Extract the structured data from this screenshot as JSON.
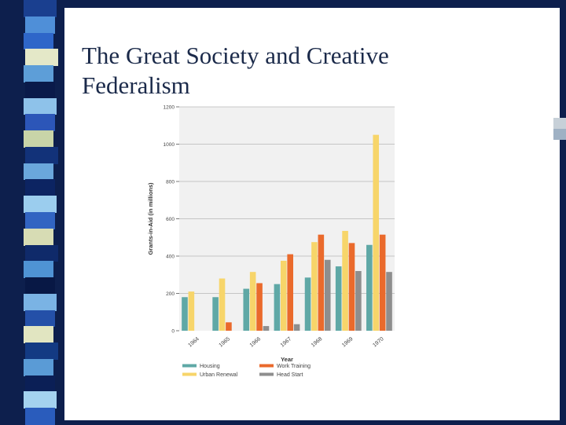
{
  "slide": {
    "title_line1": "The Great Society and Creative",
    "title_line2": "Federalism"
  },
  "colors": {
    "background": "#0d1f4d",
    "content": "#ffffff",
    "stripes": [
      "#1a3f8f",
      "#4f8fd8",
      "#2e66c9",
      "#e4e8c8",
      "#5d9ed8",
      "#0a1a4a",
      "#8ec2ea",
      "#2c56b8",
      "#c8d4a8",
      "#123279",
      "#6aa7dc",
      "#0c2462",
      "#9bcdee",
      "#3164c2",
      "#d7dcb4",
      "#0f2a6a",
      "#4f93d4",
      "#081845",
      "#7ab3e4",
      "#2450a8",
      "#e1e5c1",
      "#133a83",
      "#5a9bd6",
      "#0b1f56",
      "#a4d2ef",
      "#2a5cbc"
    ]
  },
  "chart_data": {
    "type": "bar",
    "ylabel": "Grants-in-Aid (in millions)",
    "xlabel": "Year",
    "ylim": [
      0,
      1200
    ],
    "yticks": [
      0,
      200,
      400,
      600,
      800,
      1000,
      1200
    ],
    "grid": true,
    "legend_position": "bottom",
    "categories": [
      "1964",
      "1965",
      "1966",
      "1967",
      "1968",
      "1969",
      "1970"
    ],
    "series": [
      {
        "name": "Housing",
        "color": "#5fa8a6",
        "values": [
          180,
          180,
          225,
          250,
          285,
          345,
          460
        ]
      },
      {
        "name": "Urban Renewal",
        "color": "#f7d56a",
        "values": [
          210,
          280,
          315,
          375,
          475,
          535,
          1050
        ]
      },
      {
        "name": "Work Training",
        "color": "#ea6a2c",
        "values": [
          0,
          45,
          255,
          410,
          515,
          470,
          515
        ]
      },
      {
        "name": "Head Start",
        "color": "#8e8e8e",
        "values": [
          0,
          0,
          25,
          35,
          380,
          320,
          315
        ]
      }
    ]
  }
}
